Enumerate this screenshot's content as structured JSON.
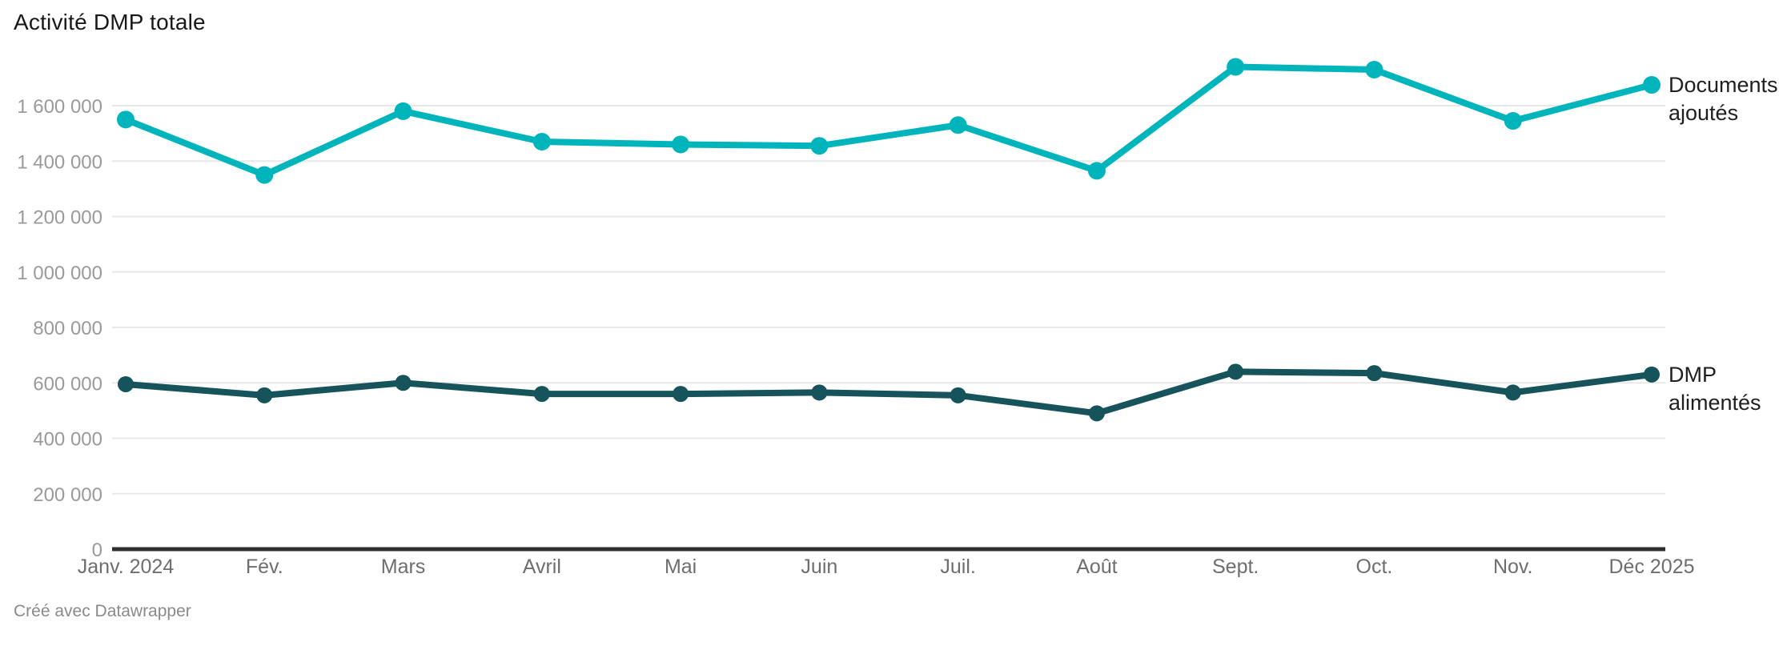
{
  "title": "Activité DMP totale",
  "footer": "Créé avec Datawrapper",
  "colors": {
    "series_documents": "#00b4bc",
    "series_dmp": "#16535b",
    "axis_line": "#2e2e2e",
    "gridline": "#e8e8e8",
    "y_tick_label": "#9a9a9a",
    "x_tick_label": "#6e6e6e",
    "series_label_text": "#1f1f1f",
    "title_text": "#191919",
    "footer_text": "#8a8a8a"
  },
  "chart_data": {
    "type": "line",
    "title": "Activité DMP totale",
    "categories": [
      "Janv. 2024",
      "Fév.",
      "Mars",
      "Avril",
      "Mai",
      "Juin",
      "Juil.",
      "Août",
      "Sept.",
      "Oct.",
      "Nov.",
      "Déc 2025"
    ],
    "series": [
      {
        "name": "Documents ajoutés",
        "label_lines": [
          "Documents",
          "ajoutés"
        ],
        "color": "#00b4bc",
        "values": [
          1550000,
          1350000,
          1580000,
          1470000,
          1460000,
          1455000,
          1530000,
          1365000,
          1740000,
          1730000,
          1545000,
          1675000
        ]
      },
      {
        "name": "DMP alimentés",
        "label_lines": [
          "DMP",
          "alimentés"
        ],
        "color": "#16535b",
        "values": [
          595000,
          555000,
          600000,
          560000,
          560000,
          565000,
          555000,
          490000,
          640000,
          635000,
          565000,
          630000
        ]
      }
    ],
    "xlabel": "",
    "ylabel": "",
    "ylim": [
      0,
      1740000
    ],
    "yticks": [
      0,
      200000,
      400000,
      600000,
      800000,
      1000000,
      1200000,
      1400000,
      1600000
    ],
    "grid": true,
    "legend_position": "right-of-line-end"
  }
}
